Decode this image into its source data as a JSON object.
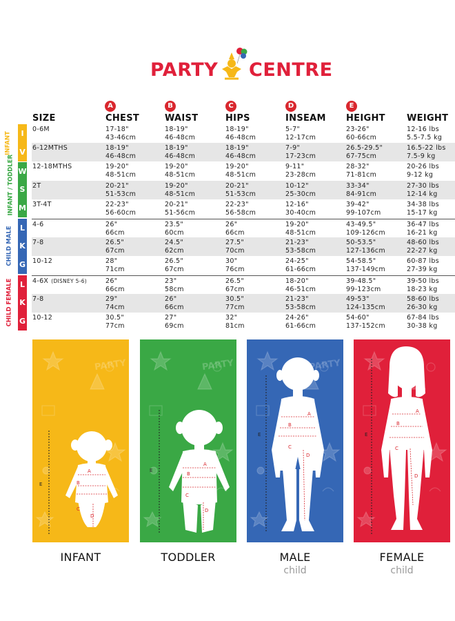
{
  "brand": {
    "name_left": "PARTY",
    "name_right": "CENTRE",
    "red": "#e0203a",
    "yellow": "#f6b818"
  },
  "measure_letters": [
    "A",
    "B",
    "C",
    "D",
    "E"
  ],
  "columns": [
    "SIZE",
    "CHEST",
    "WAIST",
    "HIPS",
    "INSEAM",
    "HEIGHT",
    "WEIGHT"
  ],
  "categories": [
    {
      "name": "INFANT",
      "color": "#f6b818",
      "letters": [
        "I",
        "V"
      ]
    },
    {
      "name": "INFANT / TODDLER",
      "color": "#3aa845",
      "letters": [
        "W",
        "S",
        "M"
      ]
    },
    {
      "name": "CHILD MALE",
      "color": "#3567b5",
      "letters": [
        "L",
        "K",
        "G"
      ]
    },
    {
      "name": "CHILD FEMALE",
      "color": "#e0203a",
      "letters": [
        "L",
        "K",
        "G"
      ]
    }
  ],
  "rows": [
    {
      "size": "0-6M",
      "chest": [
        "17-18\"",
        "43-46cm"
      ],
      "waist": [
        "18-19\"",
        "46-48cm"
      ],
      "hips": [
        "18-19\"",
        "46-48cm"
      ],
      "inseam": [
        "5-7\"",
        "12-17cm"
      ],
      "height": [
        "23-26\"",
        "60-66cm"
      ],
      "weight": [
        "12-16 lbs",
        "5.5-7.5 kg"
      ]
    },
    {
      "size": "6-12MTHS",
      "chest": [
        "18-19\"",
        "46-48cm"
      ],
      "waist": [
        "18-19\"",
        "46-48cm"
      ],
      "hips": [
        "18-19\"",
        "46-48cm"
      ],
      "inseam": [
        "7-9\"",
        "17-23cm"
      ],
      "height": [
        "26.5-29.5\"",
        "67-75cm"
      ],
      "weight": [
        "16.5-22 lbs",
        "7.5-9 kg"
      ]
    },
    {
      "size": "12-18MTHS",
      "chest": [
        "19-20\"",
        "48-51cm"
      ],
      "waist": [
        "19-20\"",
        "48-51cm"
      ],
      "hips": [
        "19-20\"",
        "48-51cm"
      ],
      "inseam": [
        "9-11\"",
        "23-28cm"
      ],
      "height": [
        "28-32\"",
        "71-81cm"
      ],
      "weight": [
        "20-26 lbs",
        "9-12 kg"
      ]
    },
    {
      "size": "2T",
      "chest": [
        "20-21\"",
        "51-53cm"
      ],
      "waist": [
        "19-20\"",
        "48-51cm"
      ],
      "hips": [
        "20-21\"",
        "51-53cm"
      ],
      "inseam": [
        "10-12\"",
        "25-30cm"
      ],
      "height": [
        "33-34\"",
        "84-91cm"
      ],
      "weight": [
        "27-30 lbs",
        "12-14 kg"
      ]
    },
    {
      "size": "3T-4T",
      "chest": [
        "22-23\"",
        "56-60cm"
      ],
      "waist": [
        "20-21\"",
        "51-56cm"
      ],
      "hips": [
        "22-23\"",
        "56-58cm"
      ],
      "inseam": [
        "12-16\"",
        "30-40cm"
      ],
      "height": [
        "39-42\"",
        "99-107cm"
      ],
      "weight": [
        "34-38 lbs",
        "15-17 kg"
      ]
    },
    {
      "size": "4-6",
      "chest": [
        "26\"",
        "66cm"
      ],
      "waist": [
        "23.5\"",
        "60cm"
      ],
      "hips": [
        "26\"",
        "66cm"
      ],
      "inseam": [
        "19-20\"",
        "48-51cm"
      ],
      "height": [
        "43-49.5\"",
        "109-126cm"
      ],
      "weight": [
        "36-47 lbs",
        "16-21 kg"
      ]
    },
    {
      "size": "7-8",
      "chest": [
        "26.5\"",
        "67cm"
      ],
      "waist": [
        "24.5\"",
        "62cm"
      ],
      "hips": [
        "27.5\"",
        "70cm"
      ],
      "inseam": [
        "21-23\"",
        "53-58cm"
      ],
      "height": [
        "50-53.5\"",
        "127-136cm"
      ],
      "weight": [
        "48-60 lbs",
        "22-27 kg"
      ]
    },
    {
      "size": "10-12",
      "chest": [
        "28\"",
        "71cm"
      ],
      "waist": [
        "26.5\"",
        "67cm"
      ],
      "hips": [
        "30\"",
        "76cm"
      ],
      "inseam": [
        "24-25\"",
        "61-66cm"
      ],
      "height": [
        "54-58.5\"",
        "137-149cm"
      ],
      "weight": [
        "60-87 lbs",
        "27-39 kg"
      ]
    },
    {
      "size": "4-6X",
      "size_note": "(DISNEY 5-6)",
      "chest": [
        "26\"",
        "66cm"
      ],
      "waist": [
        "23\"",
        "58cm"
      ],
      "hips": [
        "26.5\"",
        "67cm"
      ],
      "inseam": [
        "18-20\"",
        "46-51cm"
      ],
      "height": [
        "39-48.5\"",
        "99-123cm"
      ],
      "weight": [
        "39-50 lbs",
        "18-23 kg"
      ]
    },
    {
      "size": "7-8",
      "chest": [
        "29\"",
        "74cm"
      ],
      "waist": [
        "26\"",
        "66cm"
      ],
      "hips": [
        "30.5\"",
        "77cm"
      ],
      "inseam": [
        "21-23\"",
        "53-58cm"
      ],
      "height": [
        "49-53\"",
        "124-135cm"
      ],
      "weight": [
        "58-60 lbs",
        "26-30 kg"
      ]
    },
    {
      "size": "10-12",
      "chest": [
        "30.5\"",
        "77cm"
      ],
      "waist": [
        "27\"",
        "69cm"
      ],
      "hips": [
        "32\"",
        "81cm"
      ],
      "inseam": [
        "24-26\"",
        "61-66cm"
      ],
      "height": [
        "54-60\"",
        "137-152cm"
      ],
      "weight": [
        "67-84 lbs",
        "30-38 kg"
      ]
    }
  ],
  "panels": [
    {
      "label": "INFANT",
      "sub": "",
      "color": "#f6b818",
      "figure": "infant",
      "banner": "PARTY"
    },
    {
      "label": "TODDLER",
      "sub": "",
      "color": "#3aa845",
      "figure": "toddler",
      "banner": "PARTY"
    },
    {
      "label": "MALE",
      "sub": "child",
      "color": "#3567b5",
      "figure": "male",
      "banner": "PARTY"
    },
    {
      "label": "FEMALE",
      "sub": "child",
      "color": "#e0203a",
      "figure": "female",
      "banner": ""
    }
  ]
}
